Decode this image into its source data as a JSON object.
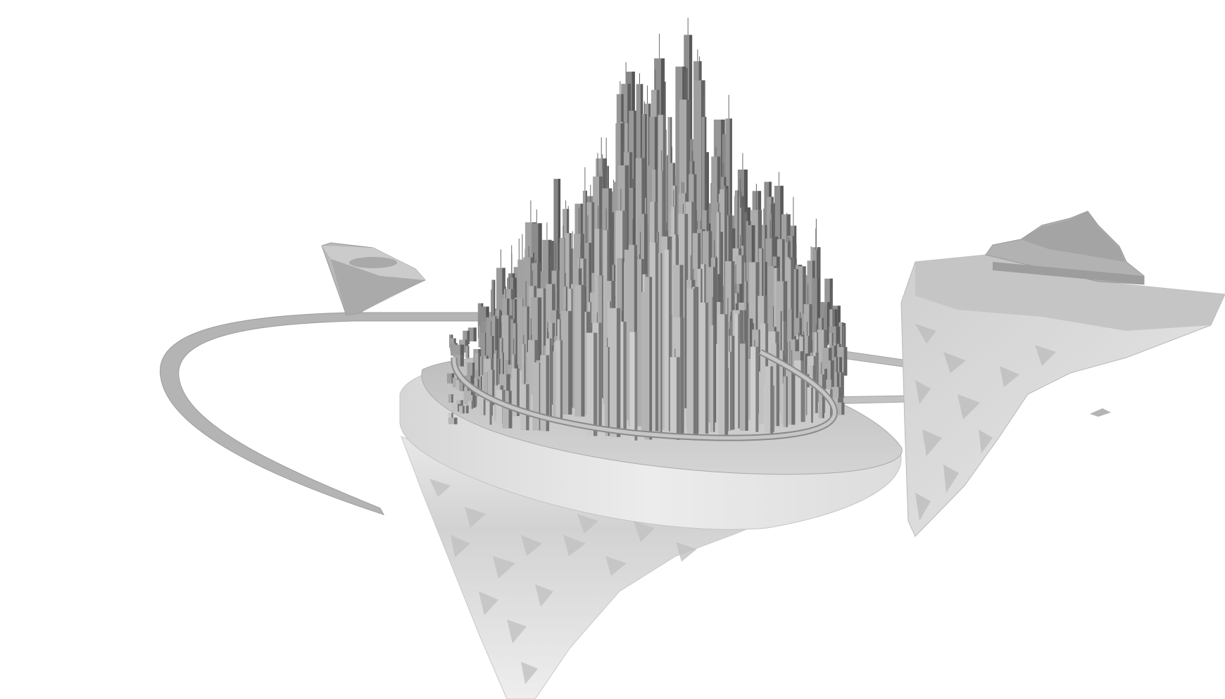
{
  "scene": {
    "background_color": "#ffffff",
    "palette": {
      "rock_light": "#d9d9d9",
      "rock_mid": "#b8b8b8",
      "rock_dark": "#8e8e8e",
      "rock_shadow": "#6f6f6f",
      "top_surface": "#c9c9c9",
      "tower_light": "#bdbdbd",
      "tower_mid": "#9a9a9a",
      "tower_dark": "#5e5e5e",
      "ring": "#a8a8a8"
    },
    "elements": [
      "central-floating-island",
      "spire-city",
      "elevated-ring-road",
      "curved-bridge-arc",
      "small-floating-rock-left",
      "floating-island-right",
      "small-rock-fragment"
    ]
  }
}
